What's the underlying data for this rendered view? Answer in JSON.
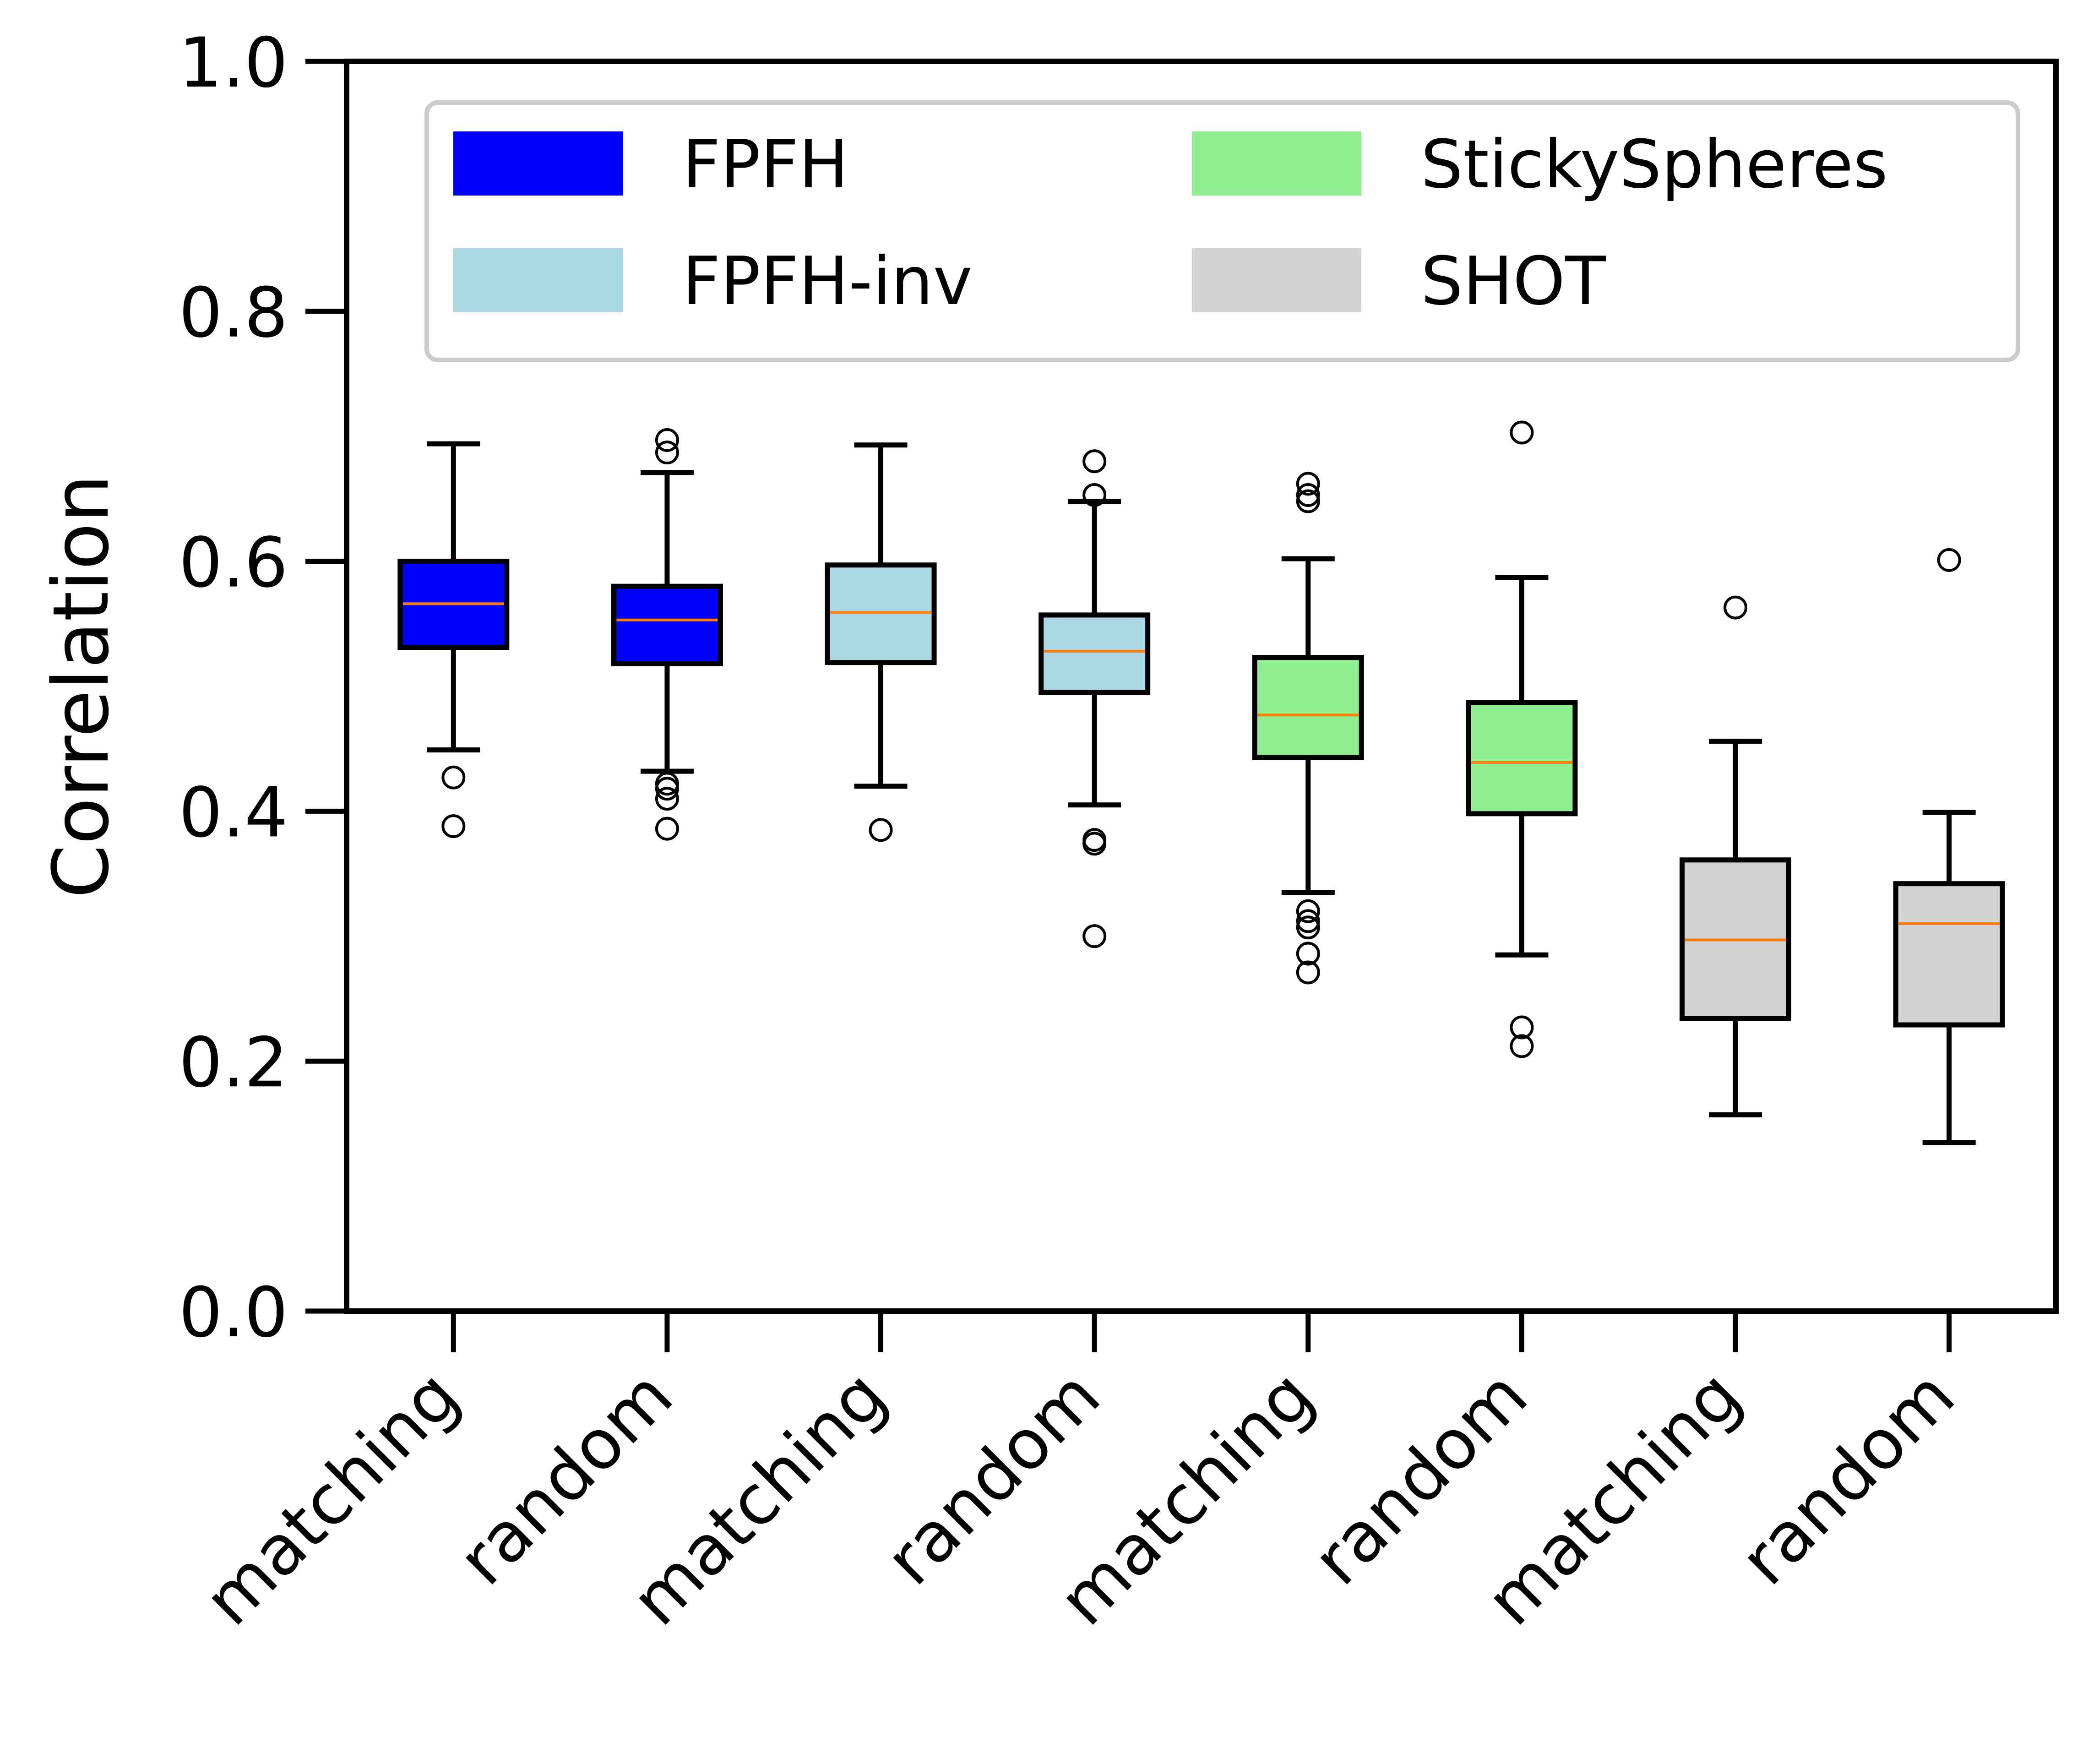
{
  "chart_data": {
    "type": "box",
    "ylabel": "Correlation",
    "xlabel": "",
    "ylim": [
      0.0,
      1.0
    ],
    "yticks": [
      0.0,
      0.2,
      0.4,
      0.6,
      0.8,
      1.0
    ],
    "ytick_labels": [
      "0.0",
      "0.2",
      "0.4",
      "0.6",
      "0.8",
      "1.0"
    ],
    "grid": false,
    "legend_position": "top",
    "legend": [
      {
        "label": "FPFH",
        "color": "#0000ff"
      },
      {
        "label": "FPFH-inv",
        "color": "#add8e6"
      },
      {
        "label": "StickySpheres",
        "color": "#90ee90"
      },
      {
        "label": "SHOT",
        "color": "#d3d3d3"
      }
    ],
    "median_color": "#ff7f0e",
    "boxes": [
      {
        "label": "matching",
        "group": "FPFH",
        "color": "#0000ff",
        "whisker_low": 0.449,
        "q1": 0.531,
        "median": 0.566,
        "q3": 0.6,
        "whisker_high": 0.694,
        "outliers": [
          0.427,
          0.388
        ]
      },
      {
        "label": "random",
        "group": "FPFH",
        "color": "#0000ff",
        "whisker_low": 0.432,
        "q1": 0.518,
        "median": 0.553,
        "q3": 0.58,
        "whisker_high": 0.671,
        "outliers": [
          0.697,
          0.687,
          0.422,
          0.418,
          0.41,
          0.386
        ]
      },
      {
        "label": "matching",
        "group": "FPFH-inv",
        "color": "#add8e6",
        "whisker_low": 0.42,
        "q1": 0.519,
        "median": 0.559,
        "q3": 0.597,
        "whisker_high": 0.693,
        "outliers": [
          0.385
        ]
      },
      {
        "label": "random",
        "group": "FPFH-inv",
        "color": "#add8e6",
        "whisker_low": 0.405,
        "q1": 0.495,
        "median": 0.528,
        "q3": 0.557,
        "whisker_high": 0.648,
        "outliers": [
          0.68,
          0.653,
          0.377,
          0.374,
          0.3
        ]
      },
      {
        "label": "matching",
        "group": "StickySpheres",
        "color": "#90ee90",
        "whisker_low": 0.335,
        "q1": 0.443,
        "median": 0.477,
        "q3": 0.523,
        "whisker_high": 0.602,
        "outliers": [
          0.662,
          0.653,
          0.648,
          0.32,
          0.312,
          0.307,
          0.286,
          0.271
        ]
      },
      {
        "label": "random",
        "group": "StickySpheres",
        "color": "#90ee90",
        "whisker_low": 0.285,
        "q1": 0.398,
        "median": 0.439,
        "q3": 0.487,
        "whisker_high": 0.587,
        "outliers": [
          0.703,
          0.227,
          0.212
        ]
      },
      {
        "label": "matching",
        "group": "SHOT",
        "color": "#d3d3d3",
        "whisker_low": 0.157,
        "q1": 0.234,
        "median": 0.297,
        "q3": 0.361,
        "whisker_high": 0.456,
        "outliers": [
          0.563
        ]
      },
      {
        "label": "random",
        "group": "SHOT",
        "color": "#d3d3d3",
        "whisker_low": 0.135,
        "q1": 0.229,
        "median": 0.31,
        "q3": 0.342,
        "whisker_high": 0.399,
        "outliers": [
          0.601
        ]
      }
    ]
  }
}
